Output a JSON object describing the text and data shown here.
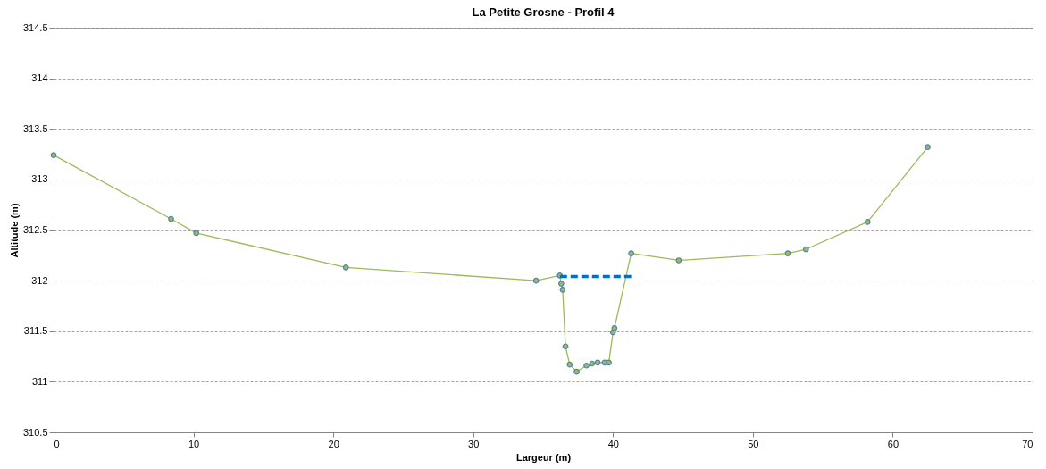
{
  "chart_data": {
    "type": "line",
    "title": "La Petite Grosne - Profil 4",
    "xlabel": "Largeur (m)",
    "ylabel": "Altitude (m)",
    "xlim": [
      0,
      70
    ],
    "xticks": [
      0,
      10,
      20,
      30,
      40,
      50,
      60,
      70
    ],
    "ylim": [
      310.5,
      314.5
    ],
    "yticks": [
      310.5,
      311,
      311.5,
      312,
      312.5,
      313,
      313.5,
      314,
      314.5
    ],
    "grid": "y",
    "legend": false,
    "series": [
      {
        "color": "#9bbb59",
        "marker": "circle",
        "line_style": "solid",
        "x": [
          0,
          8.4,
          10.2,
          20.9,
          34.5,
          36.2,
          36.3,
          36.4,
          36.6,
          36.9,
          37.4,
          38.1,
          38.5,
          38.9,
          39.4,
          39.7,
          40.0,
          40.1,
          41.3,
          44.7,
          52.5,
          53.8,
          58.2,
          62.5
        ],
        "values": [
          313.24,
          312.61,
          312.47,
          312.13,
          312.0,
          312.05,
          311.97,
          311.91,
          311.35,
          311.17,
          311.1,
          311.16,
          311.18,
          311.19,
          311.19,
          311.19,
          311.49,
          311.53,
          312.27,
          312.2,
          312.27,
          312.31,
          312.58,
          313.32
        ]
      },
      {
        "color": "#0070c0",
        "marker": "none",
        "line_style": "dashed",
        "x": [
          36.2,
          41.3
        ],
        "values": [
          312.04,
          312.04
        ]
      }
    ]
  }
}
